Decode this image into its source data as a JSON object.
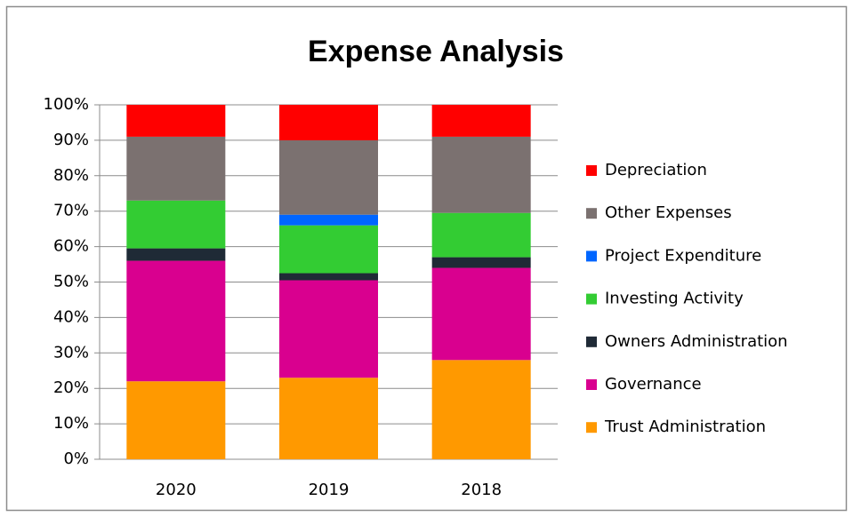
{
  "chart_data": {
    "type": "stacked_bar",
    "title": "Expense Analysis",
    "categories": [
      "2020",
      "2019",
      "2018"
    ],
    "series": [
      {
        "name": "Trust Administration",
        "color": "#ff9900",
        "values": [
          22,
          23,
          28
        ]
      },
      {
        "name": "Governance",
        "color": "#d9008f",
        "values": [
          34,
          27.5,
          26
        ]
      },
      {
        "name": "Owners Administration",
        "color": "#1f2a36",
        "values": [
          3.5,
          2,
          3
        ]
      },
      {
        "name": "Investing Activity",
        "color": "#33cc33",
        "values": [
          13.5,
          13.5,
          12.5
        ]
      },
      {
        "name": "Project Expenditure",
        "color": "#0066ff",
        "values": [
          0,
          3,
          0
        ]
      },
      {
        "name": "Other Expenses",
        "color": "#7b7170",
        "values": [
          18,
          21,
          21.5
        ]
      },
      {
        "name": "Depreciation",
        "color": "#ff0000",
        "values": [
          9,
          10,
          9
        ]
      }
    ],
    "ylim": [
      0,
      100
    ],
    "yticks": [
      {
        "value": 0,
        "label": "0%"
      },
      {
        "value": 10,
        "label": "10%"
      },
      {
        "value": 20,
        "label": "20%"
      },
      {
        "value": 30,
        "label": "30%"
      },
      {
        "value": 40,
        "label": "40%"
      },
      {
        "value": 50,
        "label": "50%"
      },
      {
        "value": 60,
        "label": "60%"
      },
      {
        "value": 70,
        "label": "70%"
      },
      {
        "value": 80,
        "label": "80%"
      },
      {
        "value": 90,
        "label": "90%"
      },
      {
        "value": 100,
        "label": "100%"
      }
    ],
    "grid": true,
    "legend": "right"
  }
}
